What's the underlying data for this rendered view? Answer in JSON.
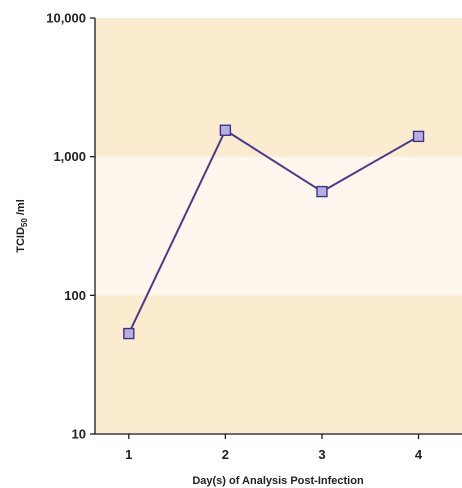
{
  "chart_data": {
    "type": "line",
    "title": "",
    "xlabel": "Day(s) of Analysis Post-Infection",
    "ylabel": {
      "main": "TCID",
      "sub": "50",
      "tail": " /ml"
    },
    "y_scale": "log",
    "ylim": [
      10,
      10000
    ],
    "xlim": [
      0.65,
      4.45
    ],
    "categories": [
      "1",
      "2",
      "3",
      "4"
    ],
    "y_ticks": [
      {
        "value": 10,
        "label": "10"
      },
      {
        "value": 100,
        "label": "100"
      },
      {
        "value": 1000,
        "label": "1,000"
      },
      {
        "value": 10000,
        "label": "10,000"
      }
    ],
    "bands": [
      {
        "from": 10,
        "to": 100,
        "color": "#fbecd0"
      },
      {
        "from": 100,
        "to": 1000,
        "color": "#fdf7ee"
      },
      {
        "from": 1000,
        "to": 10000,
        "color": "#fbecd0"
      }
    ],
    "series": [
      {
        "x": [
          1,
          2,
          3,
          4
        ],
        "values": [
          53,
          1550,
          560,
          1400
        ]
      }
    ],
    "colors": {
      "line": "#4a3b8c",
      "marker_fill": "#b8aee6",
      "marker_stroke": "#3f3480",
      "axis": "#1a1a1a"
    }
  }
}
